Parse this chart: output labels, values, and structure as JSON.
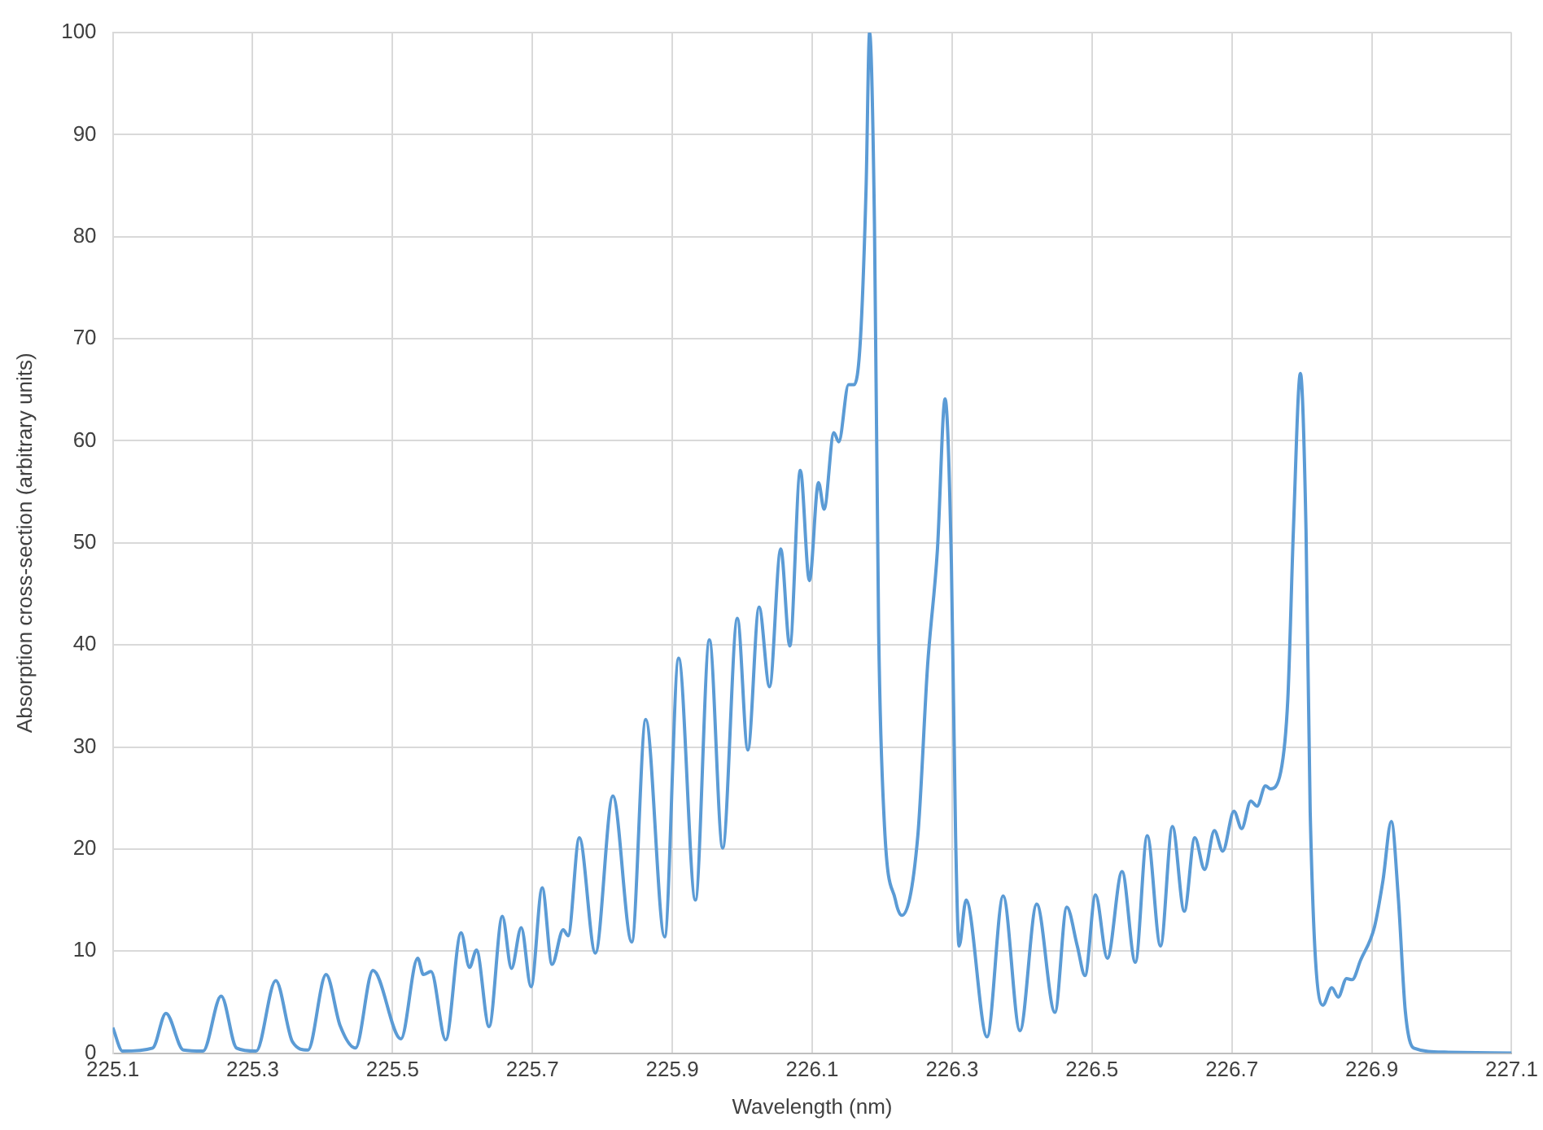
{
  "chart_data": {
    "type": "line",
    "xlabel": "Wavelength (nm)",
    "ylabel": "Absorption cross-section (arbitrary units)",
    "xlim": [
      225.1,
      227.1
    ],
    "xticks": [
      225.1,
      225.3,
      225.5,
      225.7,
      225.9,
      226.1,
      226.3,
      226.5,
      226.7,
      226.9,
      227.1
    ],
    "ylim": [
      0,
      100
    ],
    "yticks": [
      0,
      10,
      20,
      30,
      40,
      50,
      60,
      70,
      80,
      90,
      100
    ],
    "grid": true,
    "legend": false,
    "marker": "none",
    "line_style": "solid",
    "series": [
      {
        "color": "#5b9bd5",
        "x": [
          225.1,
          225.114,
          225.157,
          225.176,
          225.201,
          225.229,
          225.255,
          225.277,
          225.305,
          225.333,
          225.357,
          225.379,
          225.405,
          225.425,
          225.447,
          225.472,
          225.512,
          225.536,
          225.544,
          225.555,
          225.576,
          225.598,
          225.61,
          225.62,
          225.638,
          225.657,
          225.67,
          225.684,
          225.698,
          225.714,
          225.728,
          225.744,
          225.751,
          225.767,
          225.79,
          225.815,
          225.842,
          225.862,
          225.889,
          225.909,
          225.933,
          225.953,
          225.972,
          225.993,
          226.008,
          226.024,
          226.039,
          226.055,
          226.068,
          226.083,
          226.096,
          226.109,
          226.117,
          226.131,
          226.138,
          226.152,
          226.16,
          226.169,
          226.177,
          226.182,
          226.189,
          226.195,
          226.203,
          226.219,
          226.228,
          226.251,
          226.265,
          226.279,
          226.29,
          226.299,
          226.305,
          226.31,
          226.32,
          226.35,
          226.373,
          226.397,
          226.421,
          226.447,
          226.464,
          226.479,
          226.49,
          226.505,
          226.522,
          226.543,
          226.562,
          226.579,
          226.598,
          226.615,
          226.632,
          226.647,
          226.661,
          226.675,
          226.687,
          226.703,
          226.714,
          226.727,
          226.736,
          226.748,
          226.755,
          226.77,
          226.78,
          226.788,
          226.798,
          226.806,
          226.812,
          226.83,
          226.843,
          226.852,
          226.864,
          226.872,
          226.884,
          226.904,
          226.916,
          226.928,
          226.938,
          226.948,
          226.96,
          227.004,
          227.1
        ],
        "values": [
          2.5,
          0.2,
          0.5,
          3.9,
          0.3,
          0.2,
          5.6,
          0.5,
          0.2,
          7.1,
          1.1,
          0.3,
          7.7,
          2.7,
          0.5,
          8.1,
          1.4,
          9.3,
          7.7,
          8,
          1.3,
          11.8,
          8.4,
          10.1,
          2.6,
          13.4,
          8.3,
          12.3,
          6.5,
          16.2,
          8.7,
          12.1,
          11.5,
          21.1,
          9.8,
          25.2,
          10.9,
          32.7,
          11.4,
          38.7,
          15,
          40.5,
          20.1,
          42.6,
          29.7,
          43.7,
          35.9,
          49.4,
          39.9,
          57.1,
          46.3,
          55.9,
          53.3,
          60.8,
          59.9,
          65.5,
          65.5,
          70,
          84.7,
          100,
          81.3,
          41.3,
          22.7,
          15,
          13.5,
          21.3,
          38,
          49.3,
          64.1,
          48,
          21.3,
          10.5,
          15,
          1.6,
          15.4,
          2.2,
          14.6,
          4,
          14.3,
          10.5,
          7.6,
          15.5,
          9.3,
          17.8,
          8.9,
          21.3,
          10.5,
          22.2,
          13.9,
          21.1,
          18,
          21.8,
          19.8,
          23.7,
          22,
          24.7,
          24.2,
          26.2,
          25.9,
          27.6,
          34.7,
          51.3,
          66.6,
          51.3,
          23.6,
          4.7,
          6.4,
          5.5,
          7.3,
          7.2,
          9.1,
          12.4,
          16.9,
          22.7,
          15.2,
          4.1,
          0.5,
          0.1,
          0
        ]
      }
    ]
  }
}
